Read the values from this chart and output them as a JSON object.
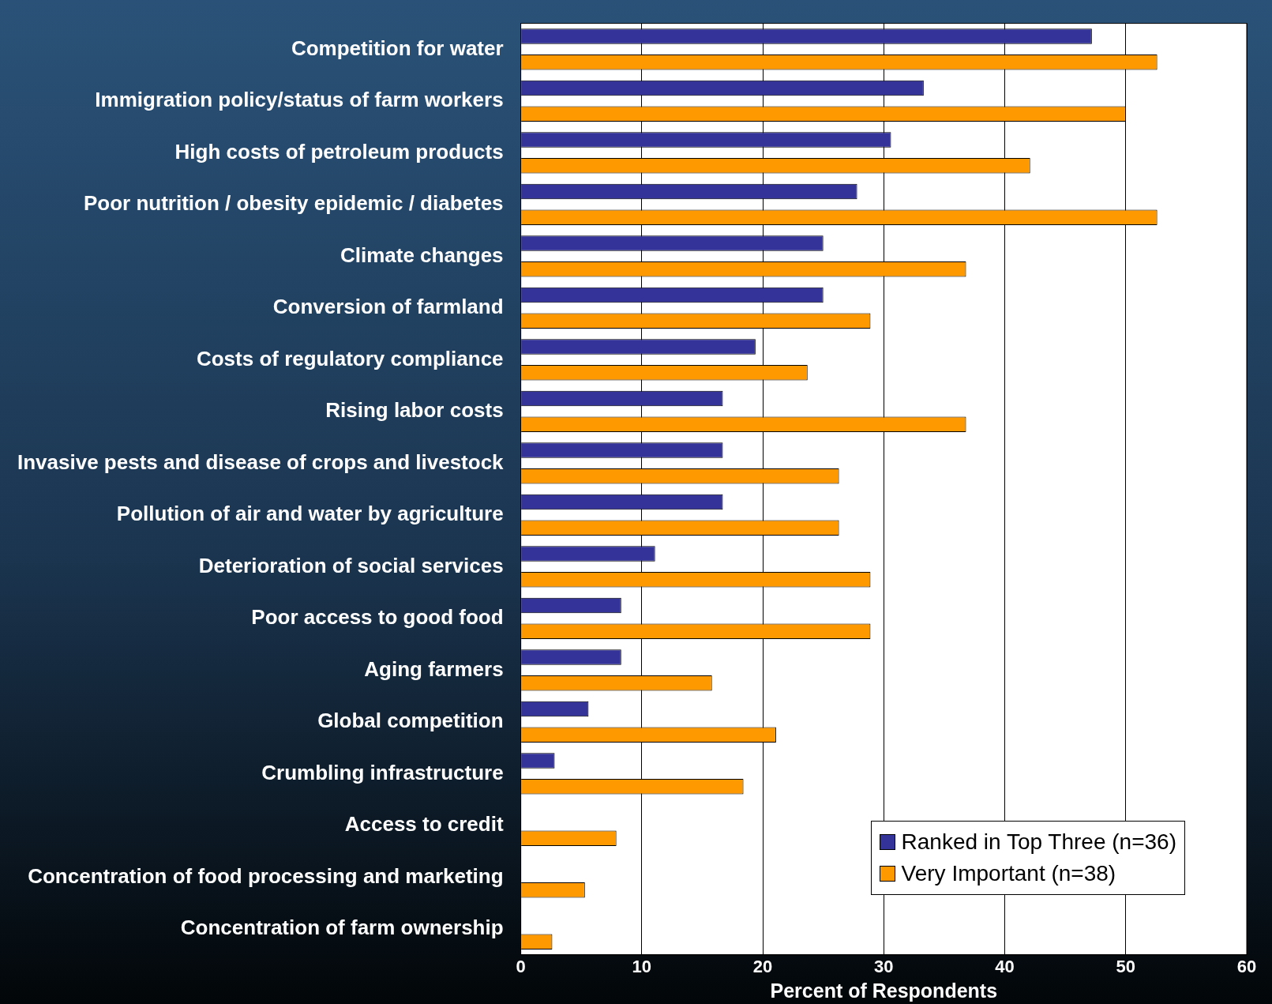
{
  "chart_data": {
    "type": "bar",
    "orientation": "horizontal",
    "xlabel": "Percent of Respondents",
    "categories": [
      "Competition for water",
      "Immigration policy/status of farm workers",
      "High costs of petroleum products",
      "Poor nutrition / obesity epidemic / diabetes",
      "Climate changes",
      "Conversion of farmland",
      "Costs of regulatory compliance",
      "Rising labor costs",
      "Invasive pests and disease of crops and livestock",
      "Pollution of air and water by agriculture",
      "Deterioration of social services",
      "Poor access to good food",
      "Aging farmers",
      "Global competition",
      "Crumbling infrastructure",
      "Access to credit",
      "Concentration of food processing and marketing",
      "Concentration of farm ownership"
    ],
    "series": [
      {
        "name": "Ranked in Top Three (n=36)",
        "color": "#333399",
        "values": [
          47.2,
          33.3,
          30.6,
          27.8,
          25,
          25,
          19.4,
          16.7,
          16.7,
          16.7,
          11.1,
          8.3,
          8.3,
          5.6,
          2.8,
          0,
          0,
          0
        ]
      },
      {
        "name": "Very Important (n=38)",
        "color": "#ff9900",
        "values": [
          52.6,
          50,
          42.1,
          52.6,
          36.8,
          28.9,
          23.7,
          36.8,
          26.3,
          26.3,
          28.9,
          28.9,
          15.8,
          21.1,
          18.4,
          7.9,
          5.3,
          2.6
        ]
      }
    ],
    "xlim": [
      0,
      60
    ],
    "xticks": [
      0,
      10,
      20,
      30,
      40,
      50,
      60
    ],
    "grid": "x",
    "legend": "bottom right"
  }
}
